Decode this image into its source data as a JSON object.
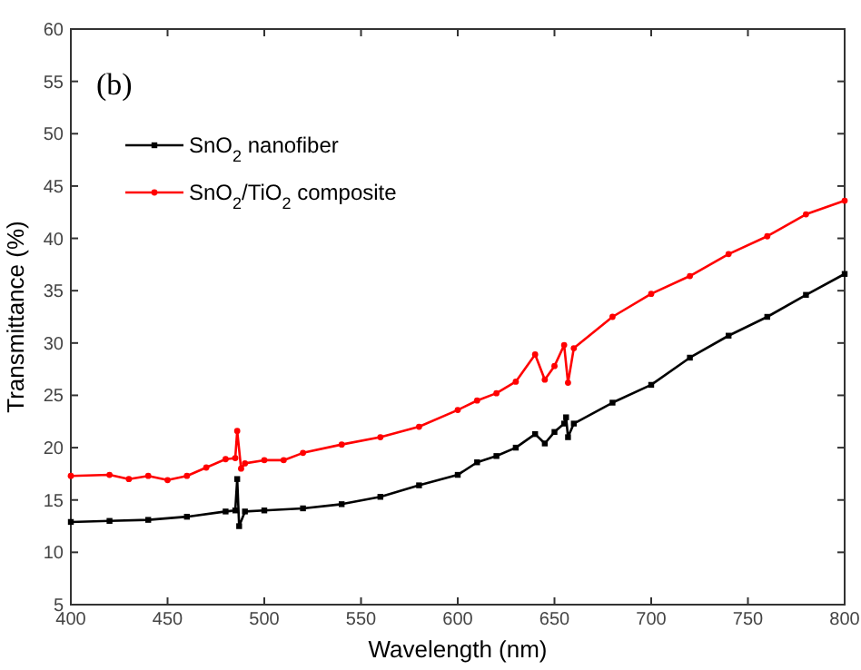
{
  "chart_data": {
    "type": "line",
    "xlabel": "Wavelength (nm)",
    "ylabel": "Transmittance (%)",
    "annotations": [
      "(b)"
    ],
    "xlim": [
      400,
      800
    ],
    "ylim": [
      5,
      60
    ],
    "xticks": [
      400,
      450,
      500,
      550,
      600,
      650,
      700,
      750,
      800
    ],
    "yticks": [
      5,
      10,
      15,
      20,
      25,
      30,
      35,
      40,
      45,
      50,
      55,
      60
    ],
    "grid": false,
    "legend": "top left",
    "x": [
      400,
      420,
      440,
      460,
      480,
      485,
      486,
      487,
      490,
      500,
      520,
      540,
      560,
      580,
      600,
      610,
      620,
      630,
      640,
      645,
      650,
      655,
      656,
      657,
      660,
      680,
      700,
      720,
      740,
      760,
      780,
      800
    ],
    "series": [
      {
        "name": "SnO$_{2}$ nanofiber",
        "color": "#000000",
        "marker": "square",
        "values": [
          12.9,
          13.0,
          13.1,
          13.4,
          13.9,
          14.0,
          17.0,
          12.5,
          13.9,
          14.0,
          14.2,
          14.6,
          15.3,
          16.4,
          17.4,
          18.6,
          19.2,
          20.0,
          21.3,
          20.4,
          21.5,
          22.3,
          22.9,
          21.0,
          22.3,
          24.3,
          26.0,
          28.6,
          30.7,
          32.5,
          34.6,
          36.6
        ]
      },
      {
        "name": "SnO$_{2}$/TiO$_{2}$ composite",
        "color": "#ff0000",
        "marker": "circle",
        "x": [
          400,
          420,
          430,
          440,
          450,
          460,
          470,
          480,
          485,
          486,
          488,
          490,
          500,
          510,
          520,
          540,
          560,
          580,
          600,
          610,
          620,
          630,
          640,
          645,
          650,
          655,
          657,
          660,
          680,
          700,
          720,
          740,
          760,
          780,
          800
        ],
        "values": [
          17.3,
          17.4,
          17.0,
          17.3,
          16.9,
          17.3,
          18.1,
          18.9,
          19.0,
          21.6,
          18.0,
          18.5,
          18.8,
          18.8,
          19.5,
          20.3,
          21.0,
          22.0,
          23.6,
          24.5,
          25.2,
          26.3,
          28.9,
          26.5,
          27.8,
          29.8,
          26.2,
          29.5,
          32.5,
          34.7,
          36.4,
          38.5,
          40.2,
          42.3,
          43.6
        ]
      }
    ]
  }
}
